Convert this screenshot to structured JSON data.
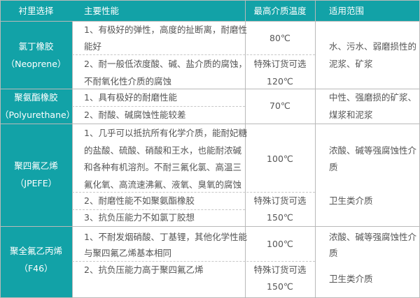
{
  "colors": {
    "header_bg": "#12a2a7",
    "first_col_bg": "#12a2a7",
    "border": "#b9b9b9",
    "text": "#555555"
  },
  "header": [
    "衬里选择",
    "主要性能",
    "最高介质温度",
    "适用范围"
  ],
  "rows": [
    {
      "lining": [
        "氯丁橡胶",
        "（Neoprene）"
      ],
      "properties": [
        [
          "1、有极好的弹性，高度的扯断离，耐磨性",
          "能好"
        ],
        [
          "2、耐一般低浓度酸、碱、盐介质的腐蚀，",
          "不耐氧化性介质的腐蚀"
        ]
      ],
      "temperature": [
        [
          "80℃"
        ],
        [
          "特殊订货可选",
          "120℃"
        ]
      ],
      "scope": [
        [
          "水、污水、弱磨损性的",
          "泥浆、矿浆"
        ]
      ]
    },
    {
      "lining": [
        "聚氨酯橡胶",
        "（Polyurethane）"
      ],
      "properties": [
        [
          "1、具有极好的耐磨性能"
        ],
        [
          "2、耐酸、碱腐蚀性能较差"
        ]
      ],
      "temperature": [
        [
          "70℃"
        ]
      ],
      "scope": [
        [
          "中性、强磨损的矿浆、",
          "煤浆和泥浆"
        ]
      ]
    },
    {
      "lining": [
        "聚四氟乙烯",
        "（JPEFE）"
      ],
      "properties": [
        [
          "1、几乎可以抵抗所有化学介质，能耐妃糖",
          "的盐酸、硫酸、硝酸和王水，也能耐浓碱",
          "和各种有机溶剂。不耐三氟化氯、高温三",
          "氟化氧、高流速沸氟、液氧、臭氧的腐蚀"
        ],
        [
          "2、耐磨性能不如聚氨酯橡胶"
        ],
        [
          "3、抗负压能力不如氯丁胶想"
        ]
      ],
      "temperature": [
        [
          "100℃"
        ],
        [
          "特殊订货可选",
          "150℃"
        ]
      ],
      "scope": [
        [
          "浓酸、碱等强腐蚀性介",
          "质"
        ],
        [
          "卫生类介质"
        ]
      ]
    },
    {
      "lining": [
        "聚全氟乙丙烯",
        "（F46）"
      ],
      "properties": [
        [
          "1、不耐发烟硝酸、丁基锂，其他化学性能",
          "与聚四氟乙烯基本相同"
        ],
        [
          "2、抗负压能力高于聚四氟乙烯"
        ]
      ],
      "temperature": [
        [
          "100℃"
        ],
        [
          "特殊订货可选",
          "150℃"
        ]
      ],
      "scope": [
        [
          "浓酸、碱等强腐蚀性介",
          "质"
        ],
        [
          "卫生类介质"
        ]
      ]
    }
  ]
}
